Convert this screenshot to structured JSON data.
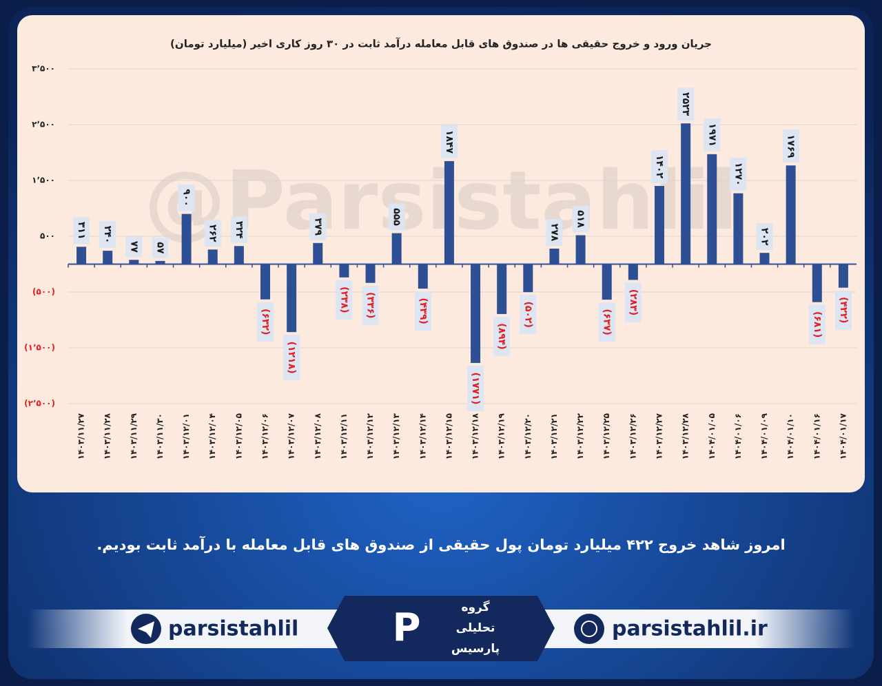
{
  "chart_data": {
    "type": "bar",
    "title": "جریان ورود و خروج حقیقی ها در صندوق های قابل معامله درآمد ثابت در ۳۰ روز کاری اخیر (میلیارد تومان)",
    "categories": [
      "۱۴۰۳/۱۱/۲۷",
      "۱۴۰۳/۱۱/۲۸",
      "۱۴۰۳/۱۱/۲۹",
      "۱۴۰۳/۱۱/۳۰",
      "۱۴۰۳/۱۲/۰۱",
      "۱۴۰۳/۱۲/۰۴",
      "۱۴۰۳/۱۲/۰۵",
      "۱۴۰۳/۱۲/۰۶",
      "۱۴۰۳/۱۲/۰۷",
      "۱۴۰۳/۱۲/۰۸",
      "۱۴۰۳/۱۲/۱۱",
      "۱۴۰۳/۱۲/۱۲",
      "۱۴۰۳/۱۲/۱۳",
      "۱۴۰۳/۱۲/۱۴",
      "۱۴۰۳/۱۲/۱۵",
      "۱۴۰۳/۱۲/۱۸",
      "۱۴۰۳/۱۲/۱۹",
      "۱۴۰۳/۱۲/۲۰",
      "۱۴۰۳/۱۲/۲۱",
      "۱۴۰۳/۱۲/۲۲",
      "۱۴۰۳/۱۲/۲۵",
      "۱۴۰۳/۱۲/۲۶",
      "۱۴۰۳/۱۲/۲۷",
      "۱۴۰۳/۱۲/۲۸",
      "۱۴۰۴/۰۱/۰۵",
      "۱۴۰۴/۰۱/۰۶",
      "۱۴۰۴/۰۱/۰۹",
      "۱۴۰۴/۰۱/۱۰",
      "۱۴۰۴/۰۱/۱۶",
      "۱۴۰۴/۰۱/۱۷"
    ],
    "values": [
      311,
      240,
      77,
      57,
      900,
      262,
      324,
      -632,
      -1218,
      379,
      -238,
      -336,
      555,
      -439,
      1847,
      -1771,
      -894,
      -502,
      278,
      518,
      -637,
      -283,
      1402,
      2523,
      1971,
      1270,
      202,
      1769,
      -681,
      -422
    ],
    "value_labels": [
      "۳۱۱",
      "۲۴۰",
      "۷۷",
      "۵۷",
      "۹۰۰",
      "۲۶۲",
      "۳۲۴",
      "(۶۳۲)",
      "(۱۲۱۸)",
      "۳۷۹",
      "(۲۳۸)",
      "(۳۳۶)",
      "۵۵۵",
      "(۴۳۹)",
      "۱۸۴۷",
      "(۱۷۷۱)",
      "(۸۹۴)",
      "(۵۰۲)",
      "۲۷۸",
      "۵۱۸",
      "(۶۳۷)",
      "(۲۸۳)",
      "۱۴۰۲",
      "۲۵۲۳",
      "۱۹۷۱",
      "۱۲۷۰",
      "۲۰۲",
      "۱۷۶۹",
      "(۶۸۱)",
      "(۴۲۲)"
    ],
    "color": "#2f4f94",
    "negative_label_color": "#e02020",
    "ylim": [
      -2500,
      3500
    ],
    "yticks": [
      {
        "value": 3500,
        "label": "۳٬۵۰۰"
      },
      {
        "value": 2500,
        "label": "۲٬۵۰۰"
      },
      {
        "value": 1500,
        "label": "۱٬۵۰۰"
      },
      {
        "value": 500,
        "label": "۵۰۰"
      },
      {
        "value": -500,
        "label": "(۵۰۰)"
      },
      {
        "value": -1500,
        "label": "(۱٬۵۰۰)"
      },
      {
        "value": -2500,
        "label": "(۲٬۵۰۰)"
      }
    ],
    "grid": true
  },
  "watermark": "@Parsistahlil",
  "caption": "امروز شاهد خروج ۴۲۲ میلیارد تومان پول حقیقی از صندوق های قابل معامله با درآمد ثابت بودیم.",
  "footer": {
    "telegram": "parsistahlil",
    "website": "parsistahlil.ir",
    "logo_lines": [
      "گروه",
      "تحلیلی",
      "پارسیس"
    ]
  }
}
